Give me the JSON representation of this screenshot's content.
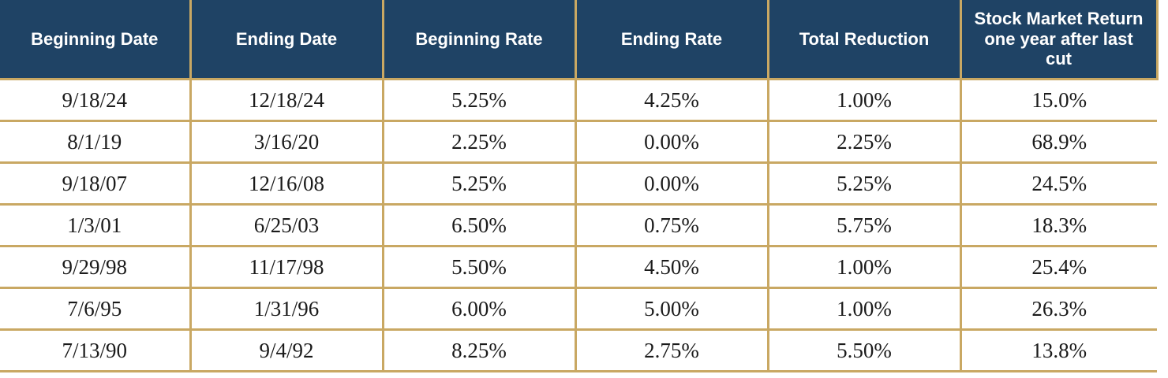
{
  "chart_data": {
    "type": "table",
    "columns": [
      "Beginning Date",
      "Ending Date",
      "Beginning Rate",
      "Ending Rate",
      "Total Reduction",
      "Stock Market Return one year after last cut"
    ],
    "rows": [
      [
        "9/18/24",
        "12/18/24",
        "5.25%",
        "4.25%",
        "1.00%",
        "15.0%"
      ],
      [
        "8/1/19",
        "3/16/20",
        "2.25%",
        "0.00%",
        "2.25%",
        "68.9%"
      ],
      [
        "9/18/07",
        "12/16/08",
        "5.25%",
        "0.00%",
        "5.25%",
        "24.5%"
      ],
      [
        "1/3/01",
        "6/25/03",
        "6.50%",
        "0.75%",
        "5.75%",
        "18.3%"
      ],
      [
        "9/29/98",
        "11/17/98",
        "5.50%",
        "4.50%",
        "1.00%",
        "25.4%"
      ],
      [
        "7/6/95",
        "1/31/96",
        "6.00%",
        "5.00%",
        "1.00%",
        "26.3%"
      ],
      [
        "7/13/90",
        "9/4/92",
        "8.25%",
        "2.75%",
        "5.50%",
        "13.8%"
      ]
    ],
    "layout": {
      "grid": "on",
      "header_position": "top"
    },
    "colors": {
      "header_bg": "#1F4365",
      "header_text": "#FFFFFF",
      "border": "#C9A863",
      "body_bg": "#FFFFFF",
      "body_text": "#1B1B1B"
    }
  }
}
